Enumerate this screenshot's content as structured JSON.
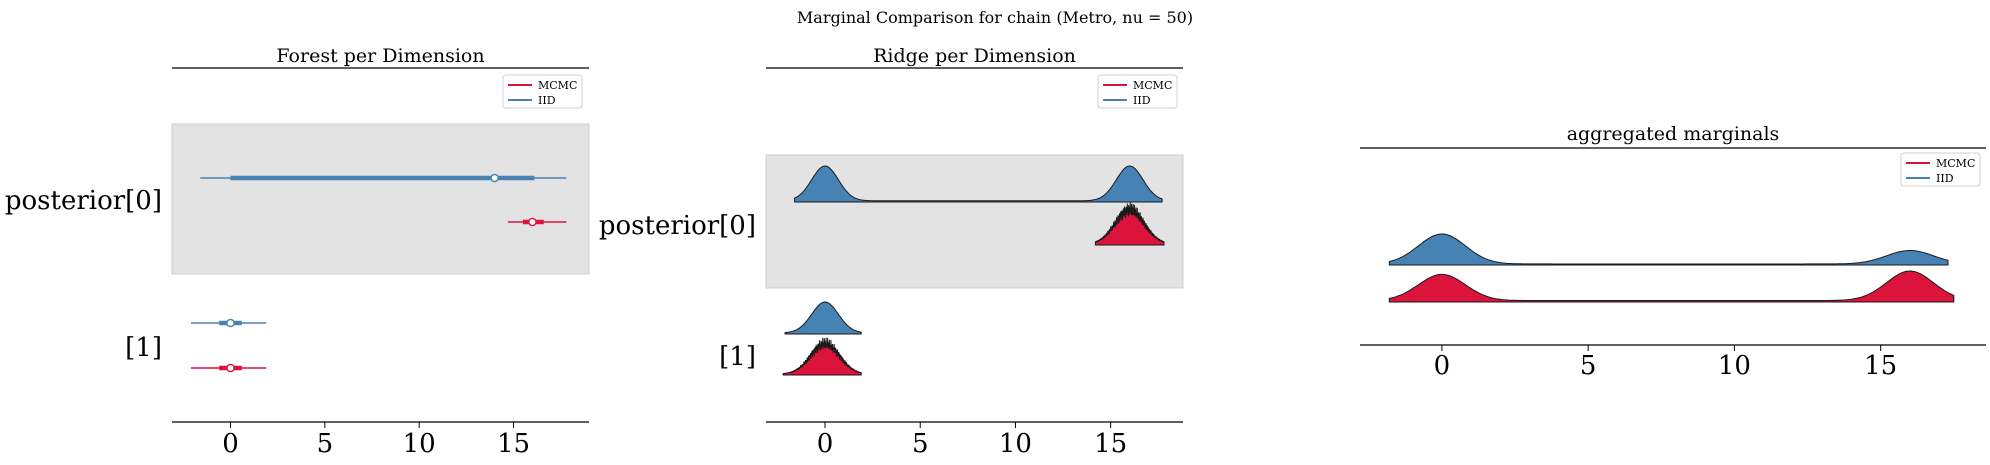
{
  "figure": {
    "suptitle": "Marginal Comparison for chain (Metro, nu = 50)"
  },
  "colors": {
    "mcmc": "#dc143c",
    "iid": "#4682b4",
    "highlight": "#e3e3e3",
    "axis": "#000000"
  },
  "legend": {
    "entries": [
      "MCMC",
      "IID"
    ]
  },
  "chart_data": [
    {
      "type": "forest",
      "title": "Forest per Dimension",
      "xlim": [
        -3.1,
        19.0
      ],
      "xticks": [
        0,
        5,
        10,
        15
      ],
      "rows": [
        {
          "label": "posterior[0]",
          "highlighted": true,
          "series": [
            {
              "name": "IID",
              "hdi_low": -1.6,
              "hdi_high": 17.8,
              "iqr_low": 0.0,
              "iqr_high": 16.1,
              "point": 14.0
            },
            {
              "name": "MCMC",
              "hdi_low": 14.7,
              "hdi_high": 17.8,
              "iqr_low": 15.5,
              "iqr_high": 16.6,
              "point": 16.0
            }
          ]
        },
        {
          "label": "[1]",
          "highlighted": false,
          "series": [
            {
              "name": "IID",
              "hdi_low": -2.1,
              "hdi_high": 1.9,
              "iqr_low": -0.6,
              "iqr_high": 0.6,
              "point": 0.0
            },
            {
              "name": "MCMC",
              "hdi_low": -2.1,
              "hdi_high": 1.9,
              "iqr_low": -0.6,
              "iqr_high": 0.6,
              "point": 0.0
            }
          ]
        }
      ]
    },
    {
      "type": "ridge",
      "title": "Ridge per Dimension",
      "xlim": [
        -3.1,
        18.8
      ],
      "xticks": [
        0,
        5,
        10,
        15
      ],
      "rows": [
        {
          "label": "posterior[0]",
          "highlighted": true,
          "series": [
            {
              "name": "IID",
              "x_min": -1.6,
              "x_max": 17.7,
              "modes": [
                {
                  "mu": 0.0,
                  "sigma": 0.7,
                  "w": 1.0
                },
                {
                  "mu": 16.0,
                  "sigma": 0.7,
                  "w": 1.0
                }
              ],
              "noisy": false
            },
            {
              "name": "MCMC",
              "x_min": 14.2,
              "x_max": 17.8,
              "modes": [
                {
                  "mu": 16.0,
                  "sigma": 0.75,
                  "w": 1.0
                }
              ],
              "noisy": true
            }
          ]
        },
        {
          "label": "[1]",
          "highlighted": false,
          "series": [
            {
              "name": "IID",
              "x_min": -2.1,
              "x_max": 1.9,
              "modes": [
                {
                  "mu": 0.0,
                  "sigma": 0.7,
                  "w": 1.0
                }
              ],
              "noisy": false
            },
            {
              "name": "MCMC",
              "x_min": -2.2,
              "x_max": 1.9,
              "modes": [
                {
                  "mu": 0.0,
                  "sigma": 0.75,
                  "w": 1.0
                }
              ],
              "noisy": true
            }
          ]
        }
      ]
    },
    {
      "type": "ridge",
      "title": "aggregated marginals",
      "xlim": [
        -2.8,
        18.6
      ],
      "xticks": [
        0,
        5,
        10,
        15
      ],
      "rows": [
        {
          "label": "",
          "highlighted": false,
          "series": [
            {
              "name": "IID",
              "x_min": -1.8,
              "x_max": 17.3,
              "modes": [
                {
                  "mu": 0.0,
                  "sigma": 0.8,
                  "w": 1.0
                },
                {
                  "mu": 16.0,
                  "sigma": 0.8,
                  "w": 0.45
                }
              ],
              "noisy": false
            },
            {
              "name": "MCMC",
              "x_min": -1.8,
              "x_max": 17.5,
              "modes": [
                {
                  "mu": 0.0,
                  "sigma": 0.8,
                  "w": 0.62
                },
                {
                  "mu": 16.0,
                  "sigma": 0.8,
                  "w": 0.7
                }
              ],
              "noisy": false
            }
          ]
        }
      ]
    }
  ]
}
